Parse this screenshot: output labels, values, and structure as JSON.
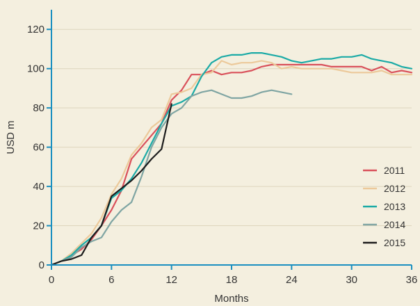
{
  "chart_data": {
    "type": "line",
    "title": "",
    "xlabel": "Months",
    "ylabel": "USD m",
    "xlim": [
      0,
      36
    ],
    "ylim": [
      0,
      130
    ],
    "x_ticks": [
      0,
      6,
      12,
      18,
      24,
      30,
      36
    ],
    "y_ticks": [
      0,
      20,
      40,
      60,
      80,
      100,
      120
    ],
    "grid": "horizontal",
    "legend_position": "right",
    "series": [
      {
        "name": "2011",
        "color": "#d9505a",
        "x": [
          0,
          1,
          2,
          3,
          4,
          5,
          6,
          7,
          8,
          9,
          10,
          11,
          12,
          13,
          14,
          15,
          16,
          17,
          18,
          19,
          20,
          21,
          22,
          23,
          24,
          25,
          26,
          27,
          28,
          29,
          30,
          31,
          32,
          33,
          34,
          35,
          36
        ],
        "y": [
          0,
          2,
          5,
          8,
          13,
          20,
          28,
          38,
          54,
          60,
          66,
          72,
          84,
          89,
          97,
          97,
          99,
          97,
          98,
          98,
          99,
          101,
          102,
          102,
          102,
          102,
          102,
          102,
          101,
          101,
          101,
          101,
          99,
          101,
          98,
          99,
          98
        ]
      },
      {
        "name": "2012",
        "color": "#ecc99a",
        "x": [
          0,
          1,
          2,
          3,
          4,
          5,
          6,
          7,
          8,
          9,
          10,
          11,
          12,
          13,
          14,
          15,
          16,
          17,
          18,
          19,
          20,
          21,
          22,
          23,
          24,
          25,
          26,
          27,
          28,
          29,
          30,
          31,
          32,
          33,
          34,
          35,
          36
        ],
        "y": [
          0,
          2,
          6,
          11,
          16,
          24,
          36,
          44,
          56,
          62,
          70,
          74,
          87,
          88,
          90,
          97,
          98,
          104,
          102,
          103,
          103,
          104,
          103,
          100,
          101,
          100,
          100,
          100,
          100,
          99,
          98,
          98,
          98,
          99,
          97,
          97,
          97
        ]
      },
      {
        "name": "2013",
        "color": "#1aaaa6",
        "x": [
          0,
          1,
          2,
          3,
          4,
          5,
          6,
          7,
          8,
          9,
          10,
          11,
          12,
          13,
          14,
          15,
          16,
          17,
          18,
          19,
          20,
          21,
          22,
          23,
          24,
          25,
          26,
          27,
          28,
          29,
          30,
          31,
          32,
          33,
          34,
          35,
          36
        ],
        "y": [
          0,
          2,
          5,
          10,
          14,
          20,
          34,
          38,
          44,
          52,
          62,
          72,
          81,
          83,
          86,
          96,
          103,
          106,
          107,
          107,
          108,
          108,
          107,
          106,
          104,
          103,
          104,
          105,
          105,
          106,
          106,
          107,
          105,
          104,
          103,
          101,
          100
        ]
      },
      {
        "name": "2014",
        "color": "#7fa5a3",
        "x": [
          0,
          1,
          2,
          3,
          4,
          5,
          6,
          7,
          8,
          9,
          10,
          11,
          12,
          13,
          14,
          15,
          16,
          17,
          18,
          19,
          20,
          21,
          22,
          23,
          24
        ],
        "y": [
          0,
          2,
          4,
          9,
          12,
          14,
          22,
          28,
          32,
          45,
          60,
          70,
          77,
          80,
          86,
          88,
          89,
          87,
          85,
          85,
          86,
          88,
          89,
          88,
          87
        ]
      },
      {
        "name": "2015",
        "color": "#1c1c1c",
        "x": [
          0,
          1,
          2,
          3,
          4,
          5,
          6,
          7,
          8,
          9,
          10,
          11,
          12
        ],
        "y": [
          0,
          2,
          3,
          5,
          14,
          20,
          35,
          39,
          43,
          48,
          54,
          59,
          82
        ]
      }
    ]
  }
}
